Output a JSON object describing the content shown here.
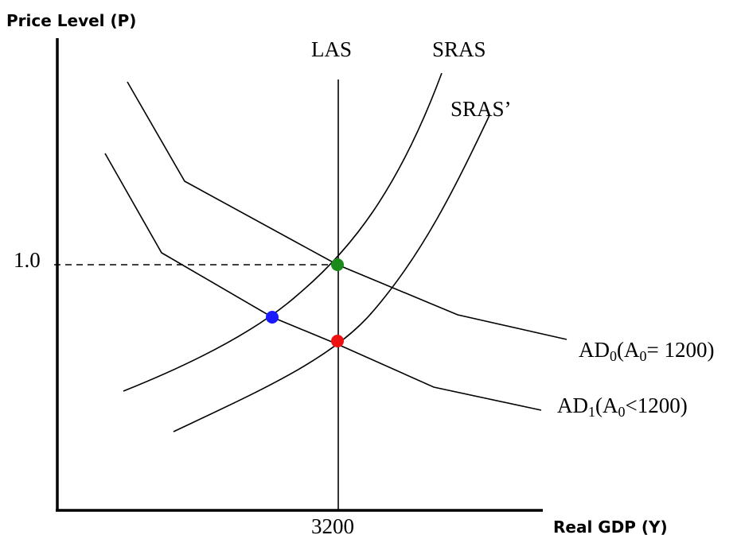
{
  "axes": {
    "y_label": "Price Level (P)",
    "x_label": "Real GDP (Y)",
    "y_tick": "1.0",
    "x_tick": "3200"
  },
  "curves": {
    "las": "LAS",
    "sras": "SRAS",
    "sras_prime": "SRAS’",
    "ad0": {
      "prefix": "AD",
      "sub1": "0",
      "mid": "(A",
      "sub2": "0",
      "suffix": "= 1200)"
    },
    "ad1": {
      "prefix": "AD",
      "sub1": "1",
      "mid": "(A",
      "sub2": "0",
      "suffix": "<1200)"
    }
  },
  "points": {
    "green": "#1a8a1a",
    "blue": "#1a1aff",
    "red": "#ee1111"
  }
}
